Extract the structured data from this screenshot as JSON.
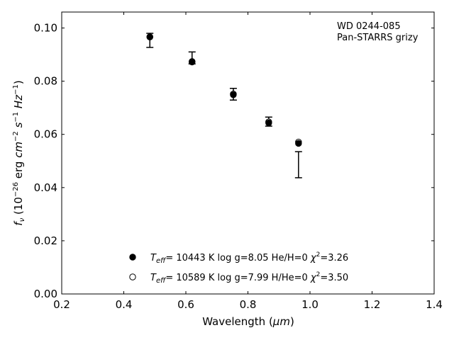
{
  "chart_data": {
    "type": "scatter",
    "xlabel_prefix": "Wavelength (",
    "xlabel_unit": "μm",
    "xlabel_suffix": ")",
    "ylabel": "f_ν (10^-26 erg cm^-2 s^-1 Hz^-1)",
    "xlim": [
      0.2,
      1.4
    ],
    "ylim": [
      0.0,
      0.106
    ],
    "x_ticks": [
      "0.2",
      "0.4",
      "0.6",
      "0.8",
      "1.0",
      "1.2",
      "1.4"
    ],
    "y_ticks": [
      "0.00",
      "0.02",
      "0.04",
      "0.06",
      "0.08",
      "0.10"
    ],
    "annotations": [
      "WD 0244-085",
      "Pan-STARRS grizy"
    ],
    "observed": {
      "x": [
        0.484,
        0.62,
        0.753,
        0.867,
        0.963
      ],
      "y": [
        0.0953,
        0.0885,
        0.0751,
        0.0648,
        0.0485
      ],
      "yerr_low": [
        0.0927,
        0.0865,
        0.0729,
        0.0631,
        0.0437
      ],
      "yerr_high": [
        0.098,
        0.091,
        0.0773,
        0.0665,
        0.0535
      ]
    },
    "series": [
      {
        "name": "T_eff= 10443 K  log g=8.05  He/H=0  χ²=3.26",
        "marker": "filled",
        "x": [
          0.484,
          0.62,
          0.753,
          0.867,
          0.963
        ],
        "y": [
          0.0966,
          0.0872,
          0.0749,
          0.0643,
          0.0566
        ]
      },
      {
        "name": "T_eff= 10589 K  log g=7.99  H/He=0  χ²=3.50",
        "marker": "open",
        "x": [
          0.484,
          0.62,
          0.753,
          0.867,
          0.963
        ],
        "y": [
          0.0967,
          0.0874,
          0.0752,
          0.0647,
          0.0571
        ]
      }
    ],
    "legend_position": "lower-center",
    "grid": false,
    "legend": [
      {
        "teff_value": "= 10443 K  log g=8.05  He/H=0  ",
        "chi_value": "=3.26"
      },
      {
        "teff_value": "= 10589 K  log g=7.99  H/He=0  ",
        "chi_value": "=3.50"
      }
    ]
  }
}
